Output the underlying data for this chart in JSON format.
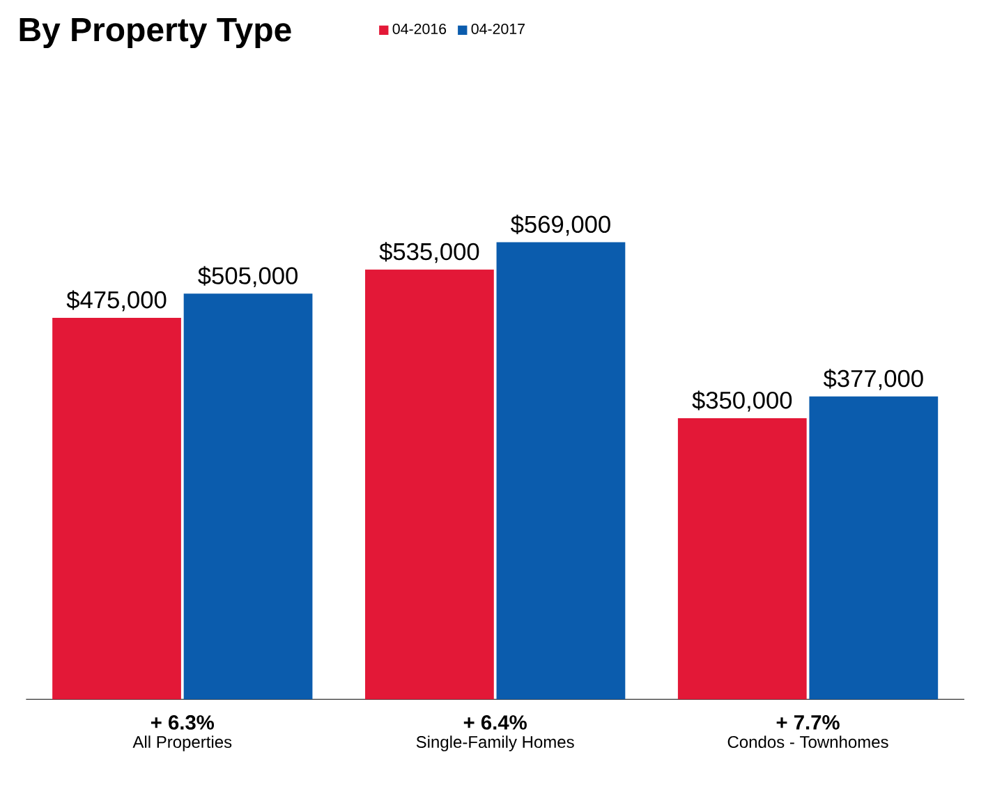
{
  "chart_data": {
    "type": "bar",
    "title": "By Property Type",
    "categories": [
      "All Properties",
      "Single-Family Homes",
      "Condos - Townhomes"
    ],
    "series": [
      {
        "name": "04-2016",
        "color": "#e31837",
        "values": [
          475000,
          535000,
          350000
        ],
        "value_labels": [
          "$475,000",
          "$535,000",
          "$350,000"
        ]
      },
      {
        "name": "04-2017",
        "color": "#0b5cad",
        "values": [
          505000,
          569000,
          377000
        ],
        "value_labels": [
          "$505,000",
          "$569,000",
          "$377,000"
        ]
      }
    ],
    "annotations": [
      "+ 6.3%",
      "+ 6.4%",
      "+ 7.7%"
    ],
    "legend": "top"
  }
}
